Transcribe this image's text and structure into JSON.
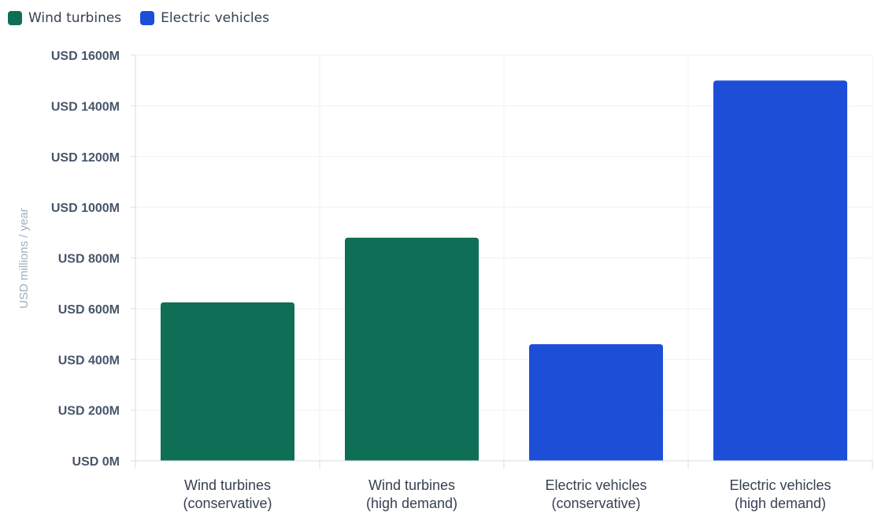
{
  "chart_data": {
    "type": "bar",
    "categories": [
      [
        "Wind turbines",
        "(conservative)"
      ],
      [
        "Wind turbines",
        "(high demand)"
      ],
      [
        "Electric vehicles",
        "(conservative)"
      ],
      [
        "Electric vehicles",
        "(high demand)"
      ]
    ],
    "series": [
      {
        "name": "Wind turbines",
        "color": "#0f6e56",
        "values": [
          625,
          880,
          null,
          null
        ]
      },
      {
        "name": "Electric vehicles",
        "color": "#1d4ed8",
        "values": [
          null,
          null,
          460,
          1500
        ]
      }
    ],
    "title": "",
    "xlabel": "",
    "ylabel": "USD millions / year",
    "ylim": [
      0,
      1600
    ],
    "yticks": [
      0,
      200,
      400,
      600,
      800,
      1000,
      1200,
      1400,
      1600
    ],
    "ytick_labels": [
      "USD 0M",
      "USD 200M",
      "USD 400M",
      "USD 600M",
      "USD 800M",
      "USD 1000M",
      "USD 1200M",
      "USD 1400M",
      "USD 1600M"
    ],
    "grid": true,
    "legend_position": "top-left"
  }
}
